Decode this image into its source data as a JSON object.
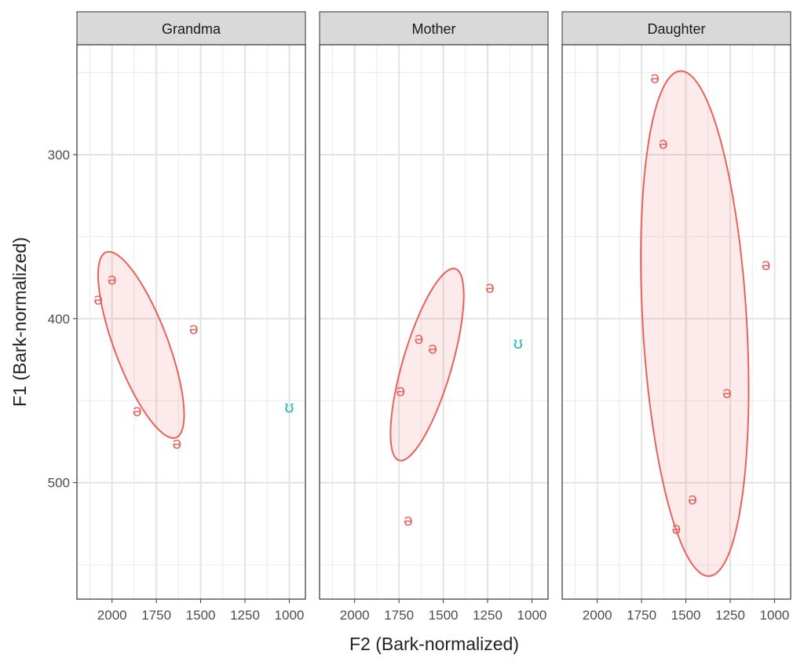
{
  "chart_data": {
    "type": "scatter",
    "title": "",
    "xlabel": "F2 (Bark-normalized)",
    "ylabel": "F1 (Bark-normalized)",
    "x_reversed": true,
    "y_reversed": true,
    "xlim": [
      2198,
      909
    ],
    "ylim": [
      233,
      571
    ],
    "x_ticks": [
      2000,
      1750,
      1500,
      1250,
      1000
    ],
    "y_ticks": [
      300,
      400,
      500
    ],
    "grid": true,
    "colors": {
      "schwa": "#E8625C",
      "upsilon": "#1AB5B5"
    },
    "panels": [
      {
        "name": "Grandma",
        "points": [
          {
            "label": "ə",
            "group": "schwa",
            "F2": 2000,
            "F1": 376
          },
          {
            "label": "ə",
            "group": "schwa",
            "F2": 2078,
            "F1": 388
          },
          {
            "label": "ə",
            "group": "schwa",
            "F2": 1539,
            "F1": 406
          },
          {
            "label": "ə",
            "group": "schwa",
            "F2": 1858,
            "F1": 456
          },
          {
            "label": "ə",
            "group": "schwa",
            "F2": 1634,
            "F1": 476
          },
          {
            "label": "ʊ",
            "group": "upsilon",
            "F2": 1000,
            "F1": 454
          }
        ],
        "ellipse": {
          "group": "schwa",
          "center": [
            1836,
            416
          ],
          "axis_a": [
            -198,
            56.5
          ],
          "axis_b": [
            140,
            6.1
          ]
        }
      },
      {
        "name": "Mother",
        "points": [
          {
            "label": "ə",
            "group": "schwa",
            "F2": 1237,
            "F1": 381
          },
          {
            "label": "ə",
            "group": "schwa",
            "F2": 1638,
            "F1": 412
          },
          {
            "label": "ə",
            "group": "schwa",
            "F2": 1560,
            "F1": 418
          },
          {
            "label": "ə",
            "group": "schwa",
            "F2": 1741,
            "F1": 444
          },
          {
            "label": "ə",
            "group": "schwa",
            "F2": 1698,
            "F1": 523
          },
          {
            "label": "ʊ",
            "group": "upsilon",
            "F2": 1078,
            "F1": 415
          }
        ],
        "ellipse": {
          "group": "schwa",
          "center": [
            1591,
            428
          ],
          "axis_a": [
            -159,
            -58.4
          ],
          "axis_b": [
            -132,
            4.4
          ]
        }
      },
      {
        "name": "Daughter",
        "points": [
          {
            "label": "ə",
            "group": "schwa",
            "F2": 1675,
            "F1": 253
          },
          {
            "label": "ə",
            "group": "schwa",
            "F2": 1628,
            "F1": 293
          },
          {
            "label": "ə",
            "group": "schwa",
            "F2": 1048,
            "F1": 367
          },
          {
            "label": "ə",
            "group": "schwa",
            "F2": 1268,
            "F1": 445
          },
          {
            "label": "ə",
            "group": "schwa",
            "F2": 1463,
            "F1": 510
          },
          {
            "label": "ə",
            "group": "schwa",
            "F2": 1554,
            "F1": 528
          }
        ],
        "ellipse": {
          "group": "schwa",
          "center": [
            1450,
            403
          ],
          "axis_a": [
            82,
            -154
          ],
          "axis_b": [
            -293,
            -1.9
          ]
        }
      }
    ]
  }
}
